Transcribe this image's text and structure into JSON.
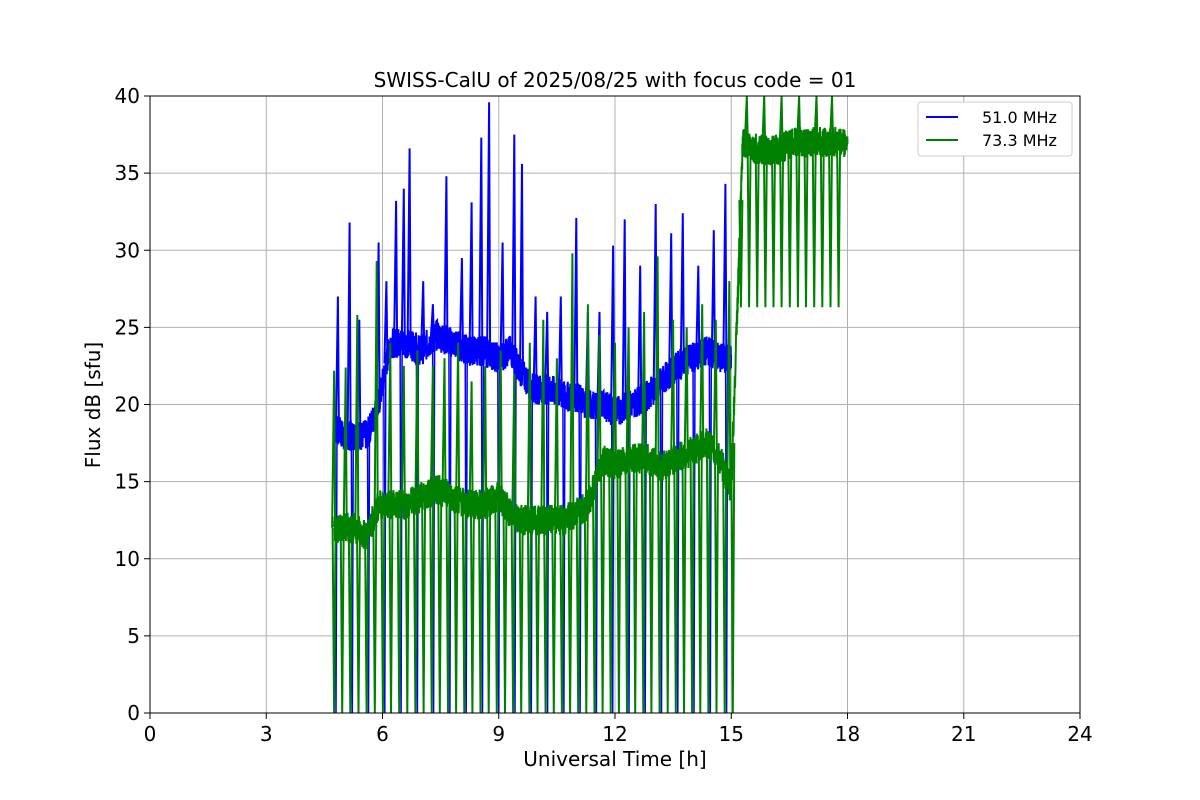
{
  "chart_data": {
    "type": "line",
    "title": "SWISS-CalU of 2025/08/25 with focus code = 01",
    "xlabel": "Universal Time [h]",
    "ylabel": "Flux dB [sfu]",
    "xlim": [
      0,
      24
    ],
    "ylim": [
      0,
      40
    ],
    "xticks": [
      0,
      3,
      6,
      9,
      12,
      15,
      18,
      21,
      24
    ],
    "yticks": [
      0,
      5,
      10,
      15,
      20,
      25,
      30,
      35,
      40
    ],
    "grid": true,
    "legend_position": "top-right",
    "series": [
      {
        "name": "51.0 MHz",
        "color": "#0000ff",
        "x": [
          4.75,
          5.0,
          5.3,
          5.6,
          5.9,
          6.2,
          6.6,
          7.0,
          7.4,
          7.8,
          8.2,
          8.6,
          9.0,
          9.3,
          9.6,
          9.9,
          10.3,
          10.7,
          11.0,
          11.3,
          11.7,
          12.0,
          12.4,
          12.8,
          13.2,
          13.6,
          14.0,
          14.4,
          14.7,
          15.0
        ],
        "y": [
          18.5,
          18.0,
          18.0,
          18.0,
          20.0,
          24.0,
          24.0,
          23.5,
          24.5,
          24.0,
          23.5,
          23.5,
          23.0,
          23.5,
          22.0,
          21.0,
          21.0,
          20.5,
          20.5,
          20.0,
          20.0,
          19.5,
          20.0,
          20.5,
          21.5,
          22.5,
          23.0,
          23.5,
          23.0,
          23.0
        ],
        "spikes_x": [
          4.85,
          5.15,
          5.4,
          5.9,
          6.1,
          6.35,
          6.55,
          6.7,
          7.05,
          7.3,
          7.65,
          8.05,
          8.3,
          8.55,
          8.75,
          9.1,
          9.4,
          9.6,
          9.95,
          10.25,
          10.6,
          11.0,
          11.3,
          11.6,
          11.95,
          12.25,
          12.65,
          13.05,
          13.45,
          13.75,
          14.15,
          14.55,
          14.85
        ],
        "spikes_y": [
          27.0,
          31.8,
          25.5,
          30.5,
          28.0,
          33.2,
          34.0,
          36.6,
          28.0,
          26.5,
          34.8,
          29.5,
          33.1,
          37.3,
          39.6,
          30.5,
          37.5,
          35.6,
          27.0,
          26.0,
          27.0,
          32.1,
          26.0,
          26.0,
          30.3,
          32.0,
          29.0,
          33.0,
          31.1,
          32.4,
          29.0,
          31.3,
          34.3
        ]
      },
      {
        "name": "73.3 MHz",
        "color": "#008000",
        "x": [
          4.75,
          5.0,
          5.3,
          5.6,
          5.9,
          6.2,
          6.6,
          7.0,
          7.4,
          7.8,
          8.2,
          8.6,
          9.0,
          9.3,
          9.6,
          9.9,
          10.3,
          10.7,
          11.0,
          11.3,
          11.7,
          12.0,
          12.4,
          12.8,
          13.2,
          13.6,
          14.0,
          14.4,
          14.7,
          15.0,
          15.3,
          15.7,
          16.2,
          16.6,
          17.0,
          17.4,
          17.8,
          18.0
        ],
        "y": [
          12.0,
          12.0,
          12.0,
          11.5,
          13.5,
          13.5,
          13.5,
          14.0,
          14.5,
          14.0,
          13.5,
          13.5,
          14.0,
          13.0,
          12.5,
          12.5,
          12.5,
          12.5,
          13.0,
          13.5,
          16.5,
          16.0,
          16.5,
          16.5,
          16.0,
          16.5,
          17.0,
          17.5,
          16.5,
          14.5,
          37.0,
          36.5,
          36.5,
          37.0,
          37.0,
          37.0,
          37.0,
          37.0
        ],
        "spikes_x": [
          4.75,
          5.05,
          5.35,
          5.85,
          6.2,
          6.55,
          6.9,
          7.3,
          7.6,
          7.95,
          8.3,
          8.65,
          9.05,
          9.4,
          9.8,
          10.15,
          10.5,
          10.9,
          11.3,
          11.6,
          12.0,
          12.35,
          12.75,
          13.1,
          13.5,
          13.85,
          14.25,
          14.6,
          14.95,
          15.4,
          15.85,
          16.3,
          16.75,
          17.2,
          17.6
        ],
        "spikes_y": [
          22.2,
          22.4,
          25.8,
          29.3,
          24.0,
          22.5,
          23.5,
          22.5,
          23.0,
          24.0,
          21.5,
          22.5,
          23.5,
          22.0,
          24.0,
          25.5,
          23.0,
          29.8,
          26.5,
          24.5,
          24.0,
          25.0,
          26.0,
          29.6,
          25.5,
          25.0,
          26.5,
          25.5,
          28.0,
          40.0,
          40.0,
          40.0,
          40.0,
          40.0,
          40.0
        ]
      }
    ]
  }
}
